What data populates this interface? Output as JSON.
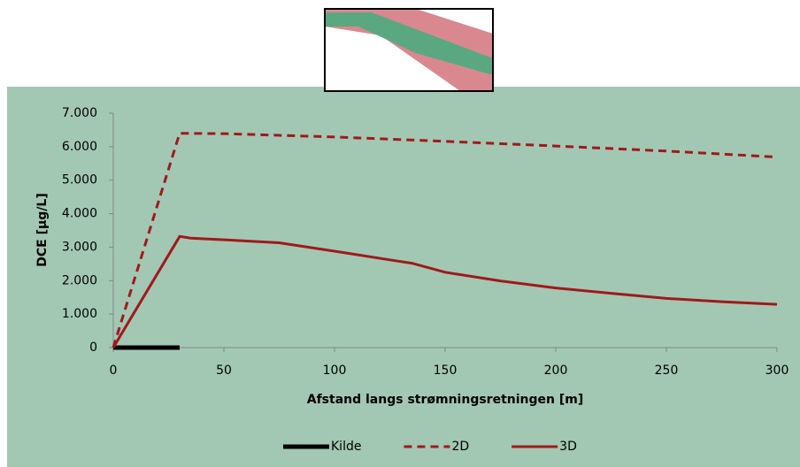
{
  "chart_data": {
    "type": "line",
    "xlabel": "Afstand langs strømningsretningen [m]",
    "ylabel": "DCE [µg/L]",
    "xlim": [
      0,
      300
    ],
    "xticks": [
      0,
      50,
      100,
      150,
      200,
      250,
      300
    ],
    "ylim": [
      0,
      7000
    ],
    "yticks": [
      0,
      {
        "value": 1000,
        "label": "1.000"
      },
      {
        "value": 2000,
        "label": "2.000"
      },
      {
        "value": 3000,
        "label": "3.000"
      },
      {
        "value": 4000,
        "label": "4.000"
      },
      {
        "value": 5000,
        "label": "5.000"
      },
      {
        "value": 6000,
        "label": "6.000"
      },
      {
        "value": 7000,
        "label": "7.000"
      }
    ],
    "grid": false,
    "legend": "bottom",
    "series": [
      {
        "name": "Kilde",
        "color": "#000000",
        "style": "solid",
        "x": [
          0,
          30
        ],
        "values": [
          0,
          0
        ]
      },
      {
        "name": "2D",
        "color": "#a0191b",
        "style": "dashed",
        "x": [
          0,
          30,
          50,
          100,
          150,
          200,
          250,
          300
        ],
        "values": [
          0,
          6400,
          6390,
          6290,
          6160,
          6020,
          5870,
          5690
        ]
      },
      {
        "name": "3D",
        "color": "#a0191b",
        "style": "solid",
        "x": [
          0,
          30,
          35,
          50,
          75,
          100,
          125,
          135,
          150,
          175,
          200,
          225,
          250,
          275,
          300
        ],
        "values": [
          0,
          3320,
          3270,
          3220,
          3130,
          2880,
          2620,
          2520,
          2250,
          1990,
          1780,
          1620,
          1470,
          1370,
          1290
        ]
      }
    ]
  }
}
